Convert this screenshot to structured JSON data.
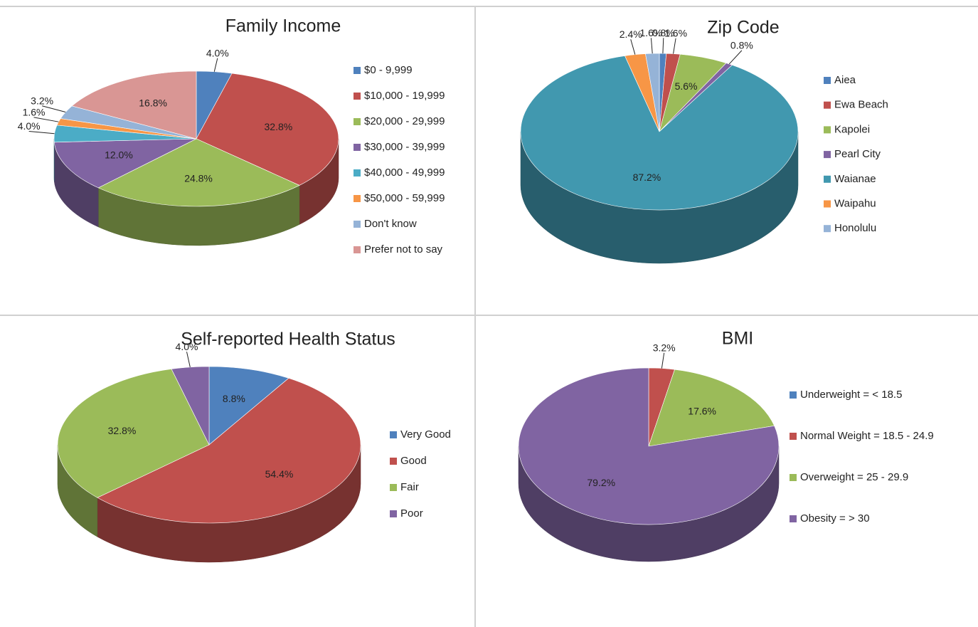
{
  "chart_data": [
    {
      "type": "pie",
      "title": "Family Income",
      "categories": [
        "$0 - 9,999",
        "$10,000 - 19,999",
        "$20,000 - 29,999",
        "$30,000 - 39,999",
        "$40,000 - 49,999",
        "$50,000 - 59,999",
        "Don't know",
        "Prefer not to say"
      ],
      "values": [
        4.0,
        32.8,
        24.8,
        12.0,
        4.0,
        1.6,
        3.2,
        16.8
      ],
      "value_labels": [
        "4.0%",
        "32.8%",
        "24.8%",
        "12.0%",
        "4.0%",
        "1.6%",
        "3.2%",
        "16.8%"
      ],
      "colors": [
        "#4f81bd",
        "#c0504d",
        "#9bbb59",
        "#8064a2",
        "#4bacc6",
        "#f79646",
        "#95b3d7",
        "#d99694"
      ]
    },
    {
      "type": "pie",
      "title": "Zip Code",
      "categories": [
        "Aiea",
        "Ewa Beach",
        "Kapolei",
        "Pearl City",
        "Waianae",
        "Waipahu",
        "Honolulu"
      ],
      "values": [
        0.8,
        1.6,
        5.6,
        0.8,
        87.2,
        2.4,
        1.6
      ],
      "value_labels": [
        "0.8%",
        "1.6%",
        "5.6%",
        "0.8%",
        "87.2%",
        "2.4%",
        "1.6%"
      ],
      "colors": [
        "#4f81bd",
        "#c0504d",
        "#9bbb59",
        "#8064a2",
        "#4198af",
        "#f79646",
        "#95b3d7"
      ]
    },
    {
      "type": "pie",
      "title": "Self-reported Health Status",
      "categories": [
        "Very Good",
        "Good",
        "Fair",
        "Poor"
      ],
      "values": [
        8.8,
        54.4,
        32.8,
        4.0
      ],
      "value_labels": [
        "8.8%",
        "54.4%",
        "32.8%",
        "4.0%"
      ],
      "colors": [
        "#4f81bd",
        "#c0504d",
        "#9bbb59",
        "#8064a2"
      ]
    },
    {
      "type": "pie",
      "title": "BMI",
      "categories": [
        "Underweight = < 18.5",
        "Normal Weight = 18.5 - 24.9",
        "Overweight = 25 - 29.9",
        "Obesity = > 30"
      ],
      "values": [
        0,
        3.2,
        17.6,
        79.2
      ],
      "value_labels": [
        null,
        "3.2%",
        "17.6%",
        "79.2%"
      ],
      "colors": [
        "#4f81bd",
        "#c0504d",
        "#9bbb59",
        "#8064a2"
      ]
    }
  ]
}
